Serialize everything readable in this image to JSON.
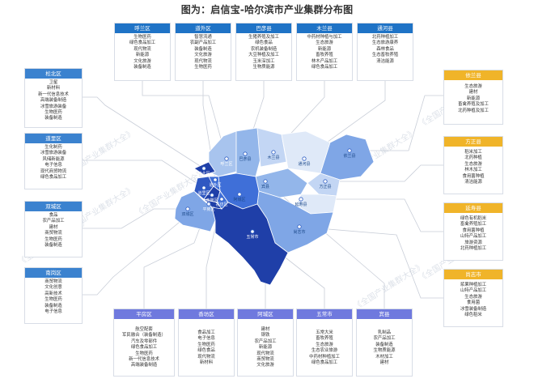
{
  "title": "图为：启信宝-哈尔滨市产业集群分布图",
  "watermark": "《全国产业集群大全》",
  "colors": {
    "dark": "#1f3fa8",
    "mid": "#3f6fd8",
    "light": "#7fa6e6",
    "pale": "#c3d6f4",
    "lightest": "#dfe9f8",
    "header_blue": "#1f73c6",
    "header_purple": "#6f79de",
    "header_orange": "#f0b429"
  },
  "chart_data": {
    "type": "map",
    "title": "图为：启信宝-哈尔滨市产业集群分布图",
    "districts": [
      {
        "name": "呼兰区",
        "industries": [
          "生物医药",
          "绿色食品加工",
          "现代物流",
          "新能源",
          "文化旅游",
          "装备制造"
        ]
      },
      {
        "name": "道外区",
        "industries": [
          "智慧流通",
          "农副产品加工",
          "装备制造",
          "文化旅游",
          "现代物流",
          "生物医药"
        ]
      },
      {
        "name": "巴彦县",
        "industries": [
          "生猪养殖及加工",
          "绿色食品",
          "农机装备制造",
          "大豆种植及加工",
          "玉米深加工",
          "生物质能源"
        ]
      },
      {
        "name": "木兰县",
        "industries": [
          "中药材种植与加工",
          "生态旅游",
          "新能源",
          "畜牧养殖",
          "林木产品加工",
          "绿色食品加工"
        ]
      },
      {
        "name": "通河县",
        "industries": [
          "北药种植加工",
          "生态旅游康养",
          "森林食品",
          "生态畜牧养殖",
          "清洁能源"
        ]
      },
      {
        "name": "松北区",
        "industries": [
          "卫星",
          "新材料",
          "新一代信息技术",
          "高端装备制造",
          "冰雪旅游装备",
          "生物医药",
          "装备制造"
        ]
      },
      {
        "name": "道里区",
        "industries": [
          "生化制药",
          "冰雪旅游装备",
          "风储新能源",
          "电子信息",
          "现代商贸物流",
          "绿色食品加工"
        ]
      },
      {
        "name": "双城区",
        "industries": [
          "食品",
          "农产品加工",
          "建材",
          "商贸物流",
          "生物医药",
          "装备制造"
        ]
      },
      {
        "name": "南岗区",
        "industries": [
          "商贸物流",
          "文化创意",
          "高新技术",
          "生物医药",
          "装备制造",
          "电子信息"
        ]
      },
      {
        "name": "依兰县",
        "industries": [
          "生态旅游",
          "建材",
          "新能源",
          "畜禽养殖及加工",
          "北药种植及加工"
        ]
      },
      {
        "name": "方正县",
        "industries": [
          "稻米加工",
          "北药种植",
          "生态旅游",
          "林木加工",
          "食用菌种植",
          "清洁能源"
        ]
      },
      {
        "name": "延寿县",
        "industries": [
          "绿色有机稻米",
          "畜禽养殖加工",
          "食用菌种植",
          "山特产品加工",
          "旅游资源",
          "北药种植加工"
        ]
      },
      {
        "name": "尚志市",
        "industries": [
          "浆果种植加工",
          "山特产品加工",
          "生态旅游",
          "食用菌",
          "冰雪装备制造",
          "绿色稻米"
        ]
      },
      {
        "name": "平房区",
        "industries": [
          "航空配套",
          "军民融合（装备制造）",
          "汽车及零部件",
          "绿色食品加工",
          "生物医药",
          "新一代信息技术",
          "高端装备制造"
        ]
      },
      {
        "name": "香坊区",
        "industries": [
          "食品加工",
          "电子信息",
          "生物医药",
          "绿色食品",
          "现代物流",
          "新材料"
        ]
      },
      {
        "name": "阿城区",
        "industries": [
          "建材",
          "钢铁",
          "农产品加工",
          "新能源",
          "现代物流",
          "商贸物流",
          "文化旅游"
        ]
      },
      {
        "name": "五常市",
        "industries": [
          "五常大米",
          "畜牧养殖",
          "生态旅游",
          "生态农业旅游",
          "中药材种植加工",
          "绿色食品加工"
        ]
      },
      {
        "name": "宾县",
        "industries": [
          "乳制品",
          "农产品加工",
          "装备制造",
          "生物质能源",
          "木材加工",
          "建材"
        ]
      }
    ]
  }
}
